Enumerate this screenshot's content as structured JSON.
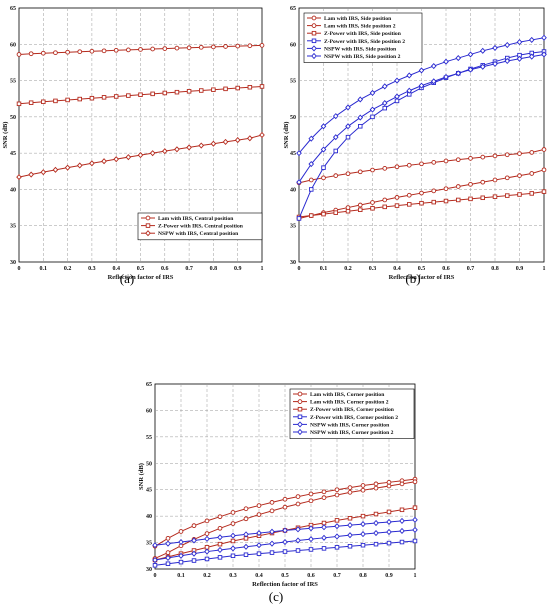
{
  "colors": {
    "red": "#b52b1e",
    "blue": "#2a2ad0",
    "grid": "#9a9a9a"
  },
  "chart_data": [
    {
      "type": "line",
      "panel_label": "(a)",
      "xlabel": "Reflection factor of IRS",
      "ylabel": "SNR (dB)",
      "xlim": [
        0,
        1
      ],
      "ylim": [
        30,
        65
      ],
      "xticks": [
        "0",
        "0.1",
        "0.2",
        "0.3",
        "0.4",
        "0.5",
        "0.6",
        "0.7",
        "0.8",
        "0.9",
        "1"
      ],
      "yticks": [
        "30",
        "35",
        "40",
        "45",
        "50",
        "55",
        "60",
        "65"
      ],
      "grid": true,
      "legend_position": "bottom-right",
      "x": [
        0,
        0.05,
        0.1,
        0.15,
        0.2,
        0.25,
        0.3,
        0.35,
        0.4,
        0.45,
        0.5,
        0.55,
        0.6,
        0.65,
        0.7,
        0.75,
        0.8,
        0.85,
        0.9,
        0.95,
        1
      ],
      "series": [
        {
          "name": "Lam with IRS, Central position",
          "color": "#b52b1e",
          "marker": "circle",
          "values": [
            58.6,
            58.7,
            58.77,
            58.84,
            58.91,
            58.98,
            59.04,
            59.1,
            59.17,
            59.23,
            59.29,
            59.35,
            59.41,
            59.47,
            59.52,
            59.58,
            59.64,
            59.7,
            59.75,
            59.8,
            59.85
          ]
        },
        {
          "name": "Z-Power with IRS, Central position",
          "color": "#b52b1e",
          "marker": "square",
          "values": [
            51.8,
            51.95,
            52.08,
            52.2,
            52.33,
            52.45,
            52.57,
            52.69,
            52.81,
            52.93,
            53.05,
            53.17,
            53.29,
            53.4,
            53.52,
            53.63,
            53.74,
            53.86,
            53.97,
            54.08,
            54.19
          ]
        },
        {
          "name": "NSPW with IRS, Central position",
          "color": "#b52b1e",
          "marker": "diamond",
          "values": [
            41.7,
            42.05,
            42.38,
            42.7,
            43.0,
            43.3,
            43.6,
            43.89,
            44.17,
            44.45,
            44.73,
            45.0,
            45.27,
            45.53,
            45.79,
            46.05,
            46.3,
            46.55,
            46.8,
            47.05,
            47.5
          ]
        }
      ]
    },
    {
      "type": "line",
      "panel_label": "(b)",
      "xlabel": "Reflection factor of IRS",
      "ylabel": "SNR (dB)",
      "xlim": [
        0,
        1
      ],
      "ylim": [
        30,
        65
      ],
      "xticks": [
        "0",
        "0.1",
        "0.2",
        "0.3",
        "0.4",
        "0.5",
        "0.6",
        "0.7",
        "0.8",
        "0.9",
        "1"
      ],
      "yticks": [
        "30",
        "35",
        "40",
        "45",
        "50",
        "55",
        "60",
        "65"
      ],
      "grid": true,
      "legend_position": "top-left",
      "x": [
        0,
        0.05,
        0.1,
        0.15,
        0.2,
        0.25,
        0.3,
        0.35,
        0.4,
        0.45,
        0.5,
        0.55,
        0.6,
        0.65,
        0.7,
        0.75,
        0.8,
        0.85,
        0.9,
        0.95,
        1
      ],
      "series": [
        {
          "name": "Lam with IRS, Side position",
          "color": "#b52b1e",
          "marker": "circle",
          "values": [
            40.9,
            41.3,
            41.6,
            41.9,
            42.17,
            42.43,
            42.67,
            42.9,
            43.12,
            43.33,
            43.53,
            43.73,
            43.92,
            44.1,
            44.28,
            44.45,
            44.62,
            44.78,
            44.94,
            45.1,
            45.5
          ]
        },
        {
          "name": "Lam with IRS, Side position 2",
          "color": "#b52b1e",
          "marker": "circle",
          "values": [
            36.0,
            36.4,
            36.8,
            37.15,
            37.5,
            37.85,
            38.2,
            38.55,
            38.9,
            39.2,
            39.5,
            39.8,
            40.1,
            40.4,
            40.7,
            41.0,
            41.3,
            41.6,
            41.9,
            42.2,
            42.7
          ]
        },
        {
          "name": "Z-Power with IRS, Side position",
          "color": "#b52b1e",
          "marker": "square",
          "values": [
            36.2,
            36.4,
            36.6,
            36.8,
            37.0,
            37.2,
            37.4,
            37.6,
            37.77,
            37.94,
            38.1,
            38.25,
            38.4,
            38.55,
            38.7,
            38.85,
            39.0,
            39.15,
            39.3,
            39.45,
            39.7
          ]
        },
        {
          "name": "Z-Power with IRS, Side position 2",
          "color": "#2a2ad0",
          "marker": "square",
          "values": [
            36.0,
            40.0,
            43.0,
            45.3,
            47.2,
            48.7,
            50.0,
            51.2,
            52.2,
            53.1,
            54.0,
            54.7,
            55.4,
            56.0,
            56.6,
            57.1,
            57.6,
            58.1,
            58.5,
            58.8,
            59.0
          ]
        },
        {
          "name": "NSPW with IRS, Side position",
          "color": "#2a2ad0",
          "marker": "diamond",
          "values": [
            41.0,
            43.5,
            45.5,
            47.2,
            48.7,
            49.9,
            51.0,
            51.9,
            52.8,
            53.6,
            54.3,
            54.9,
            55.5,
            56.0,
            56.5,
            56.9,
            57.3,
            57.7,
            58.0,
            58.3,
            58.6
          ]
        },
        {
          "name": "NSPW with IRS, Side position 2",
          "color": "#2a2ad0",
          "marker": "diamond",
          "values": [
            45.0,
            47.0,
            48.7,
            50.1,
            51.3,
            52.4,
            53.3,
            54.2,
            55.0,
            55.7,
            56.4,
            57.0,
            57.6,
            58.1,
            58.6,
            59.1,
            59.5,
            59.9,
            60.3,
            60.6,
            60.9
          ]
        }
      ]
    },
    {
      "type": "line",
      "panel_label": "(c)",
      "xlabel": "Reflection factor of IRS",
      "ylabel": "SNR (dB)",
      "xlim": [
        0,
        1
      ],
      "ylim": [
        30,
        65
      ],
      "xticks": [
        "0",
        "0.1",
        "0.2",
        "0.3",
        "0.4",
        "0.5",
        "0.6",
        "0.7",
        "0.8",
        "0.9",
        "1"
      ],
      "yticks": [
        "30",
        "35",
        "40",
        "45",
        "50",
        "55",
        "60",
        "65"
      ],
      "grid": true,
      "legend_position": "top-right",
      "x": [
        0,
        0.05,
        0.1,
        0.15,
        0.2,
        0.25,
        0.3,
        0.35,
        0.4,
        0.45,
        0.5,
        0.55,
        0.6,
        0.65,
        0.7,
        0.75,
        0.8,
        0.85,
        0.9,
        0.95,
        1
      ],
      "series": [
        {
          "name": "Lam with IRS, Corner position",
          "color": "#b52b1e",
          "marker": "circle",
          "values": [
            34.3,
            35.8,
            37.1,
            38.2,
            39.1,
            39.9,
            40.7,
            41.4,
            42.0,
            42.6,
            43.2,
            43.7,
            44.2,
            44.6,
            45.0,
            45.4,
            45.8,
            46.1,
            46.4,
            46.7,
            47.0
          ]
        },
        {
          "name": "Lam with IRS, Corner position 2",
          "color": "#b52b1e",
          "marker": "circle",
          "values": [
            32.0,
            33.1,
            34.4,
            35.6,
            36.7,
            37.7,
            38.6,
            39.5,
            40.3,
            41.0,
            41.7,
            42.3,
            42.9,
            43.5,
            44.0,
            44.5,
            44.9,
            45.3,
            45.7,
            46.1,
            46.5
          ]
        },
        {
          "name": "Z-Power with IRS, Corner position",
          "color": "#b52b1e",
          "marker": "square",
          "values": [
            31.7,
            32.3,
            32.9,
            33.5,
            34.1,
            34.7,
            35.3,
            35.8,
            36.3,
            36.8,
            37.3,
            37.8,
            38.3,
            38.7,
            39.2,
            39.6,
            40.0,
            40.4,
            40.8,
            41.2,
            41.6
          ]
        },
        {
          "name": "Z-Power with IRS, Corner position 2",
          "color": "#2a2ad0",
          "marker": "square",
          "values": [
            30.7,
            31.0,
            31.3,
            31.6,
            31.9,
            32.2,
            32.5,
            32.7,
            32.9,
            33.1,
            33.3,
            33.5,
            33.7,
            33.9,
            34.1,
            34.3,
            34.5,
            34.7,
            34.9,
            35.1,
            35.3
          ]
        },
        {
          "name": "NSPW with IRS, Corner position",
          "color": "#2a2ad0",
          "marker": "diamond",
          "values": [
            31.7,
            32.1,
            32.5,
            32.9,
            33.3,
            33.6,
            33.9,
            34.2,
            34.5,
            34.8,
            35.1,
            35.4,
            35.65,
            35.9,
            36.15,
            36.4,
            36.6,
            36.8,
            37.0,
            37.2,
            37.4
          ]
        },
        {
          "name": "NSPW with IRS, Corner position 2",
          "color": "#2a2ad0",
          "marker": "diamond",
          "values": [
            34.5,
            34.8,
            35.1,
            35.4,
            35.7,
            36.0,
            36.3,
            36.55,
            36.8,
            37.05,
            37.3,
            37.5,
            37.7,
            37.9,
            38.1,
            38.3,
            38.5,
            38.7,
            38.9,
            39.1,
            39.3
          ]
        }
      ]
    }
  ]
}
